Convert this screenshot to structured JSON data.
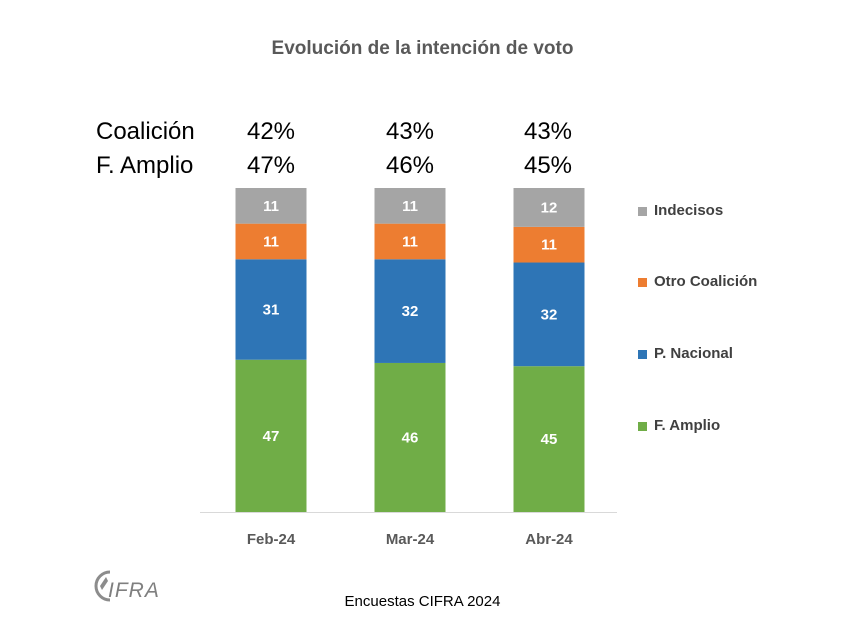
{
  "title": "Evolución de la intención de voto",
  "summary": {
    "rows": [
      {
        "label": "Coalición",
        "values": [
          "42%",
          "43%",
          "43%"
        ]
      },
      {
        "label": "F. Amplio",
        "values": [
          "47%",
          "46%",
          "45%"
        ]
      }
    ]
  },
  "footer": "Encuestas CIFRA 2024",
  "logo_text": "CIFRA",
  "chart_data": {
    "type": "bar",
    "stacked": true,
    "categories": [
      "Feb-24",
      "Mar-24",
      "Abr-24"
    ],
    "series": [
      {
        "name": "F. Amplio",
        "color": "#70AD47",
        "values": [
          47,
          46,
          45
        ]
      },
      {
        "name": "P. Nacional",
        "color": "#2E75B6",
        "values": [
          31,
          32,
          32
        ]
      },
      {
        "name": "Otro Coalición",
        "color": "#ED7D31",
        "values": [
          11,
          11,
          11
        ]
      },
      {
        "name": "Indecisos",
        "color": "#A5A5A5",
        "values": [
          11,
          11,
          12
        ]
      }
    ],
    "legend_order": [
      "Indecisos",
      "Otro Coalición",
      "P. Nacional",
      "F. Amplio"
    ],
    "legend_position": "right",
    "ylim": [
      0,
      100
    ],
    "grid": false,
    "data_labels": true
  }
}
